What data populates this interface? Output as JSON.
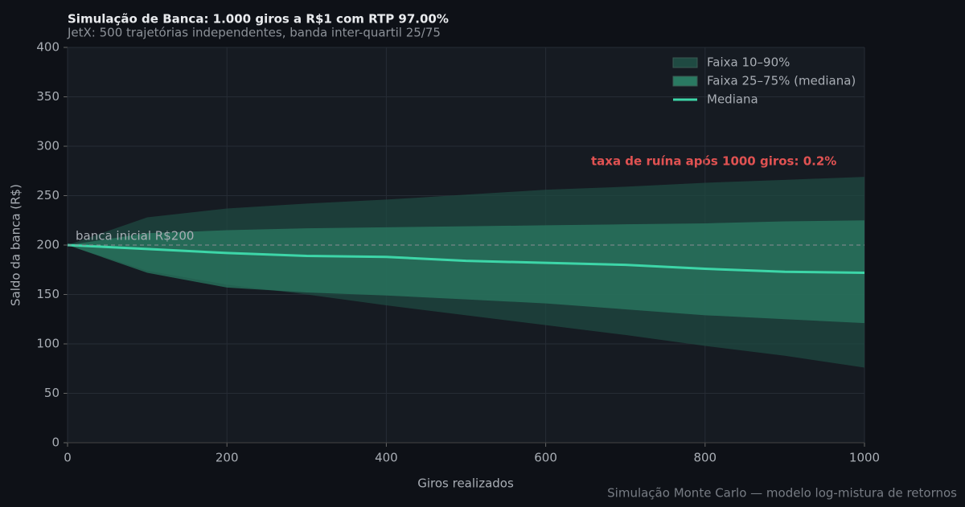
{
  "chart_data": {
    "type": "line",
    "title": "Simulação de Banca: 1.000 giros a R$1 com RTP 97.00%",
    "subtitle": "JetX: 500 trajetórias independentes, banda inter-quartil 25/75",
    "x_label": "Giros realizados",
    "y_label": "Saldo da banca (R$)",
    "x": [
      0,
      100,
      200,
      300,
      400,
      500,
      600,
      700,
      800,
      900,
      1000
    ],
    "series": [
      {
        "name": "Faixa 10–90%",
        "color": "#1f4a42",
        "lower": [
          200,
          174,
          160,
          150,
          139,
          129,
          119,
          109,
          98,
          88,
          76
        ],
        "upper": [
          200,
          228,
          237,
          242,
          246,
          251,
          256,
          259,
          263,
          266,
          269
        ]
      },
      {
        "name": "Faixa 25–75% (mediana)",
        "color": "#2a7a62",
        "lower": [
          200,
          172,
          157,
          152,
          149,
          145,
          141,
          135,
          129,
          125,
          121
        ],
        "upper": [
          200,
          212,
          215,
          217,
          218,
          219,
          220,
          221,
          222,
          224,
          225
        ]
      },
      {
        "name": "Mediana",
        "color": "#3dd6a8",
        "values": [
          200,
          196,
          192,
          189,
          188,
          184,
          182,
          180,
          176,
          173,
          172
        ]
      }
    ],
    "reference_line": 200,
    "reference_label": "banca inicial R$200",
    "annotation": "taxa de ruína após 1000 giros: 0.2%",
    "footnote": "Simulação Monte Carlo — modelo log-mistura de retornos",
    "xlim": [
      0,
      1000
    ],
    "xticks": [
      0,
      200,
      400,
      600,
      800,
      1000
    ],
    "ylim": [
      0,
      400
    ],
    "yticks": [
      0,
      50,
      100,
      150,
      200,
      250,
      300,
      350,
      400
    ],
    "grid": true,
    "legend": "upper right"
  }
}
